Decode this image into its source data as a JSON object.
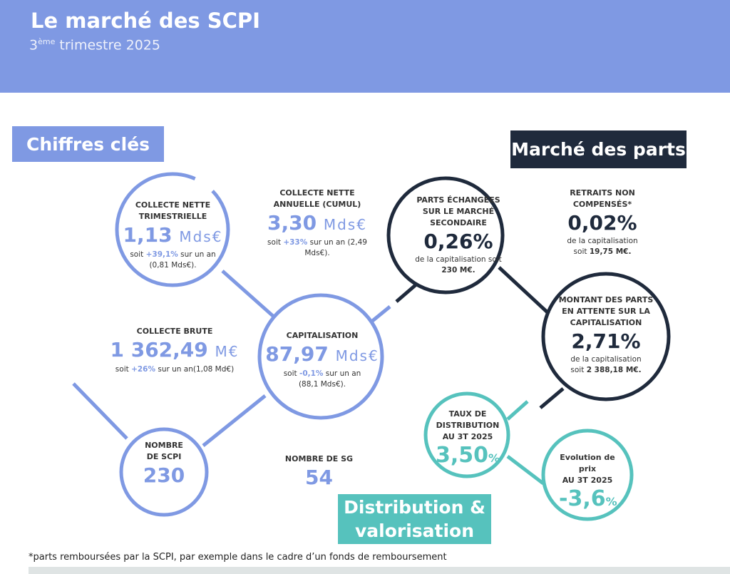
{
  "header": {
    "title": "Le marché des SCPI",
    "subtitle_num": "3",
    "subtitle_sup": "ème",
    "subtitle_rest": " trimestre 2025"
  },
  "sections": {
    "chiffres": "Chiffres clés",
    "marche": "Marché des parts",
    "distribution": "Distribution & valorisation"
  },
  "colors": {
    "blue": "#7f99e3",
    "dark": "#1f2a3c",
    "teal": "#56c2bd"
  },
  "chiffres": {
    "collecte_trim": {
      "label": "COLLECTE NETTE TRIMESTRIELLE",
      "value": "1,13",
      "unit": "Mds€",
      "note_a": "soit ",
      "note_hl": "+39,1%",
      "note_b": " sur un an (0,81 Mds€)."
    },
    "collecte_ann": {
      "label": "COLLECTE NETTE ANNUELLE (CUMUL)",
      "value": "3,30",
      "unit": "Mds€",
      "note_a": "soit ",
      "note_hl": "+33%",
      "note_b": " sur un an (2,49 Mds€)."
    },
    "collecte_brute": {
      "label": "COLLECTE BRUTE",
      "value": "1 362,49",
      "unit": "M€",
      "note_a": "soit ",
      "note_hl": "+26%",
      "note_b": " sur un an(1,08 Md€)"
    },
    "capitalisation": {
      "label": "CAPITALISATION",
      "value": "87,97",
      "unit": "Mds€",
      "note_a": "soit ",
      "note_hl": "-0,1%",
      "note_b": " sur un an (88,1 Mds€)."
    },
    "nb_scpi": {
      "label": "NOMBRE DE SCPI",
      "value": "230"
    },
    "nb_sg": {
      "label": "NOMBRE DE SG",
      "value": "54"
    }
  },
  "marche": {
    "parts": {
      "label": "PARTS ÉCHANGÉES SUR LE MARCHÉ SECONDAIRE",
      "value": "0,26%",
      "note_a": "de la capitalisation soit ",
      "note_b": "230 M€."
    },
    "retraits": {
      "label": "RETRAITS NON COMPENSÉS*",
      "value": "0,02%",
      "note_a": "de la capitalisation soit ",
      "note_b": "19,75 M€."
    },
    "attente": {
      "label": "MONTANT DES PARTS EN ATTENTE SUR LA CAPITALISATION",
      "value": "2,71%",
      "note_a": "de la capitalisation soit ",
      "note_b": "2 388,18 M€."
    }
  },
  "distribution": {
    "taux": {
      "label": "TAUX DE DISTRIBUTION AU 3T 2025",
      "value": "3,50",
      "unit": "%"
    },
    "evolution": {
      "label_a": "Evolution de prix",
      "label_b": "AU 3T 2025",
      "value": "-3,6",
      "unit": "%"
    }
  },
  "footnote": "*parts remboursées par la SCPI, par exemple dans le cadre d’un fonds de remboursement"
}
